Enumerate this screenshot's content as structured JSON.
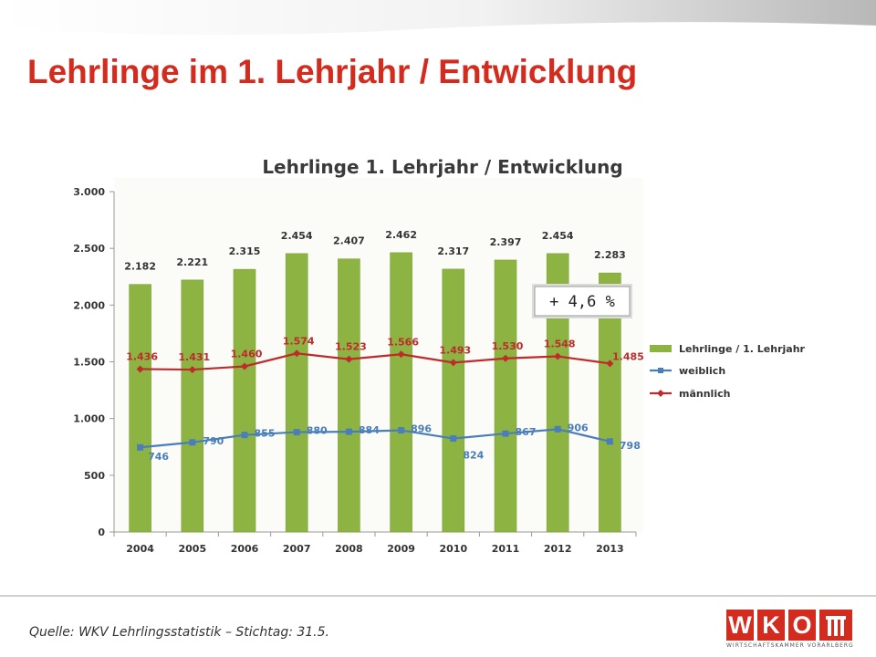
{
  "slide": {
    "title": "Lehrlinge im 1. Lehrjahr / Entwicklung",
    "source": "Quelle: WKV Lehrlingsstatistik – Stichtag: 31.5.",
    "callout": "+ 4,6 %",
    "logo": {
      "letters": [
        "W",
        "K",
        "O"
      ],
      "tagline": "WIRTSCHAFTSKAMMER VORARLBERG"
    },
    "colors": {
      "title": "#d42b1f",
      "bar": "#8db442",
      "female": "#4a7ebb",
      "male": "#be2b2b"
    }
  },
  "chart_data": {
    "type": "bar",
    "title": "Lehrlinge 1. Lehrjahr / Entwicklung",
    "categories": [
      "2004",
      "2005",
      "2006",
      "2007",
      "2008",
      "2009",
      "2010",
      "2011",
      "2012",
      "2013"
    ],
    "ylim": [
      0,
      3000
    ],
    "yticks": [
      0,
      500,
      1000,
      1500,
      2000,
      2500,
      3000
    ],
    "ytick_labels": [
      "0",
      "500",
      "1.000",
      "1.500",
      "2.000",
      "2.500",
      "3.000"
    ],
    "grid": false,
    "legend_position": "right",
    "series": [
      {
        "name": "Lehrlinge / 1. Lehrjahr",
        "kind": "bar",
        "color": "#8db442",
        "values": [
          2182,
          2221,
          2315,
          2454,
          2407,
          2462,
          2317,
          2397,
          2454,
          2283
        ],
        "labels": [
          "2.182",
          "2.221",
          "2.315",
          "2.454",
          "2.407",
          "2.462",
          "2.317",
          "2.397",
          "2.454",
          "2.283"
        ]
      },
      {
        "name": "weiblich",
        "kind": "line",
        "color": "#4a7ebb",
        "values": [
          746,
          790,
          855,
          880,
          884,
          896,
          824,
          867,
          906,
          798
        ],
        "labels": [
          "746",
          "790",
          "855",
          "880",
          "884",
          "896",
          "824",
          "867",
          "906",
          "798"
        ]
      },
      {
        "name": "männlich",
        "kind": "line",
        "color": "#be2b2b",
        "values": [
          1436,
          1431,
          1460,
          1574,
          1523,
          1566,
          1493,
          1530,
          1548,
          1485
        ],
        "labels": [
          "1.436",
          "1.431",
          "1.460",
          "1.574",
          "1.523",
          "1.566",
          "1.493",
          "1.530",
          "1.548",
          "1.485"
        ]
      }
    ]
  }
}
